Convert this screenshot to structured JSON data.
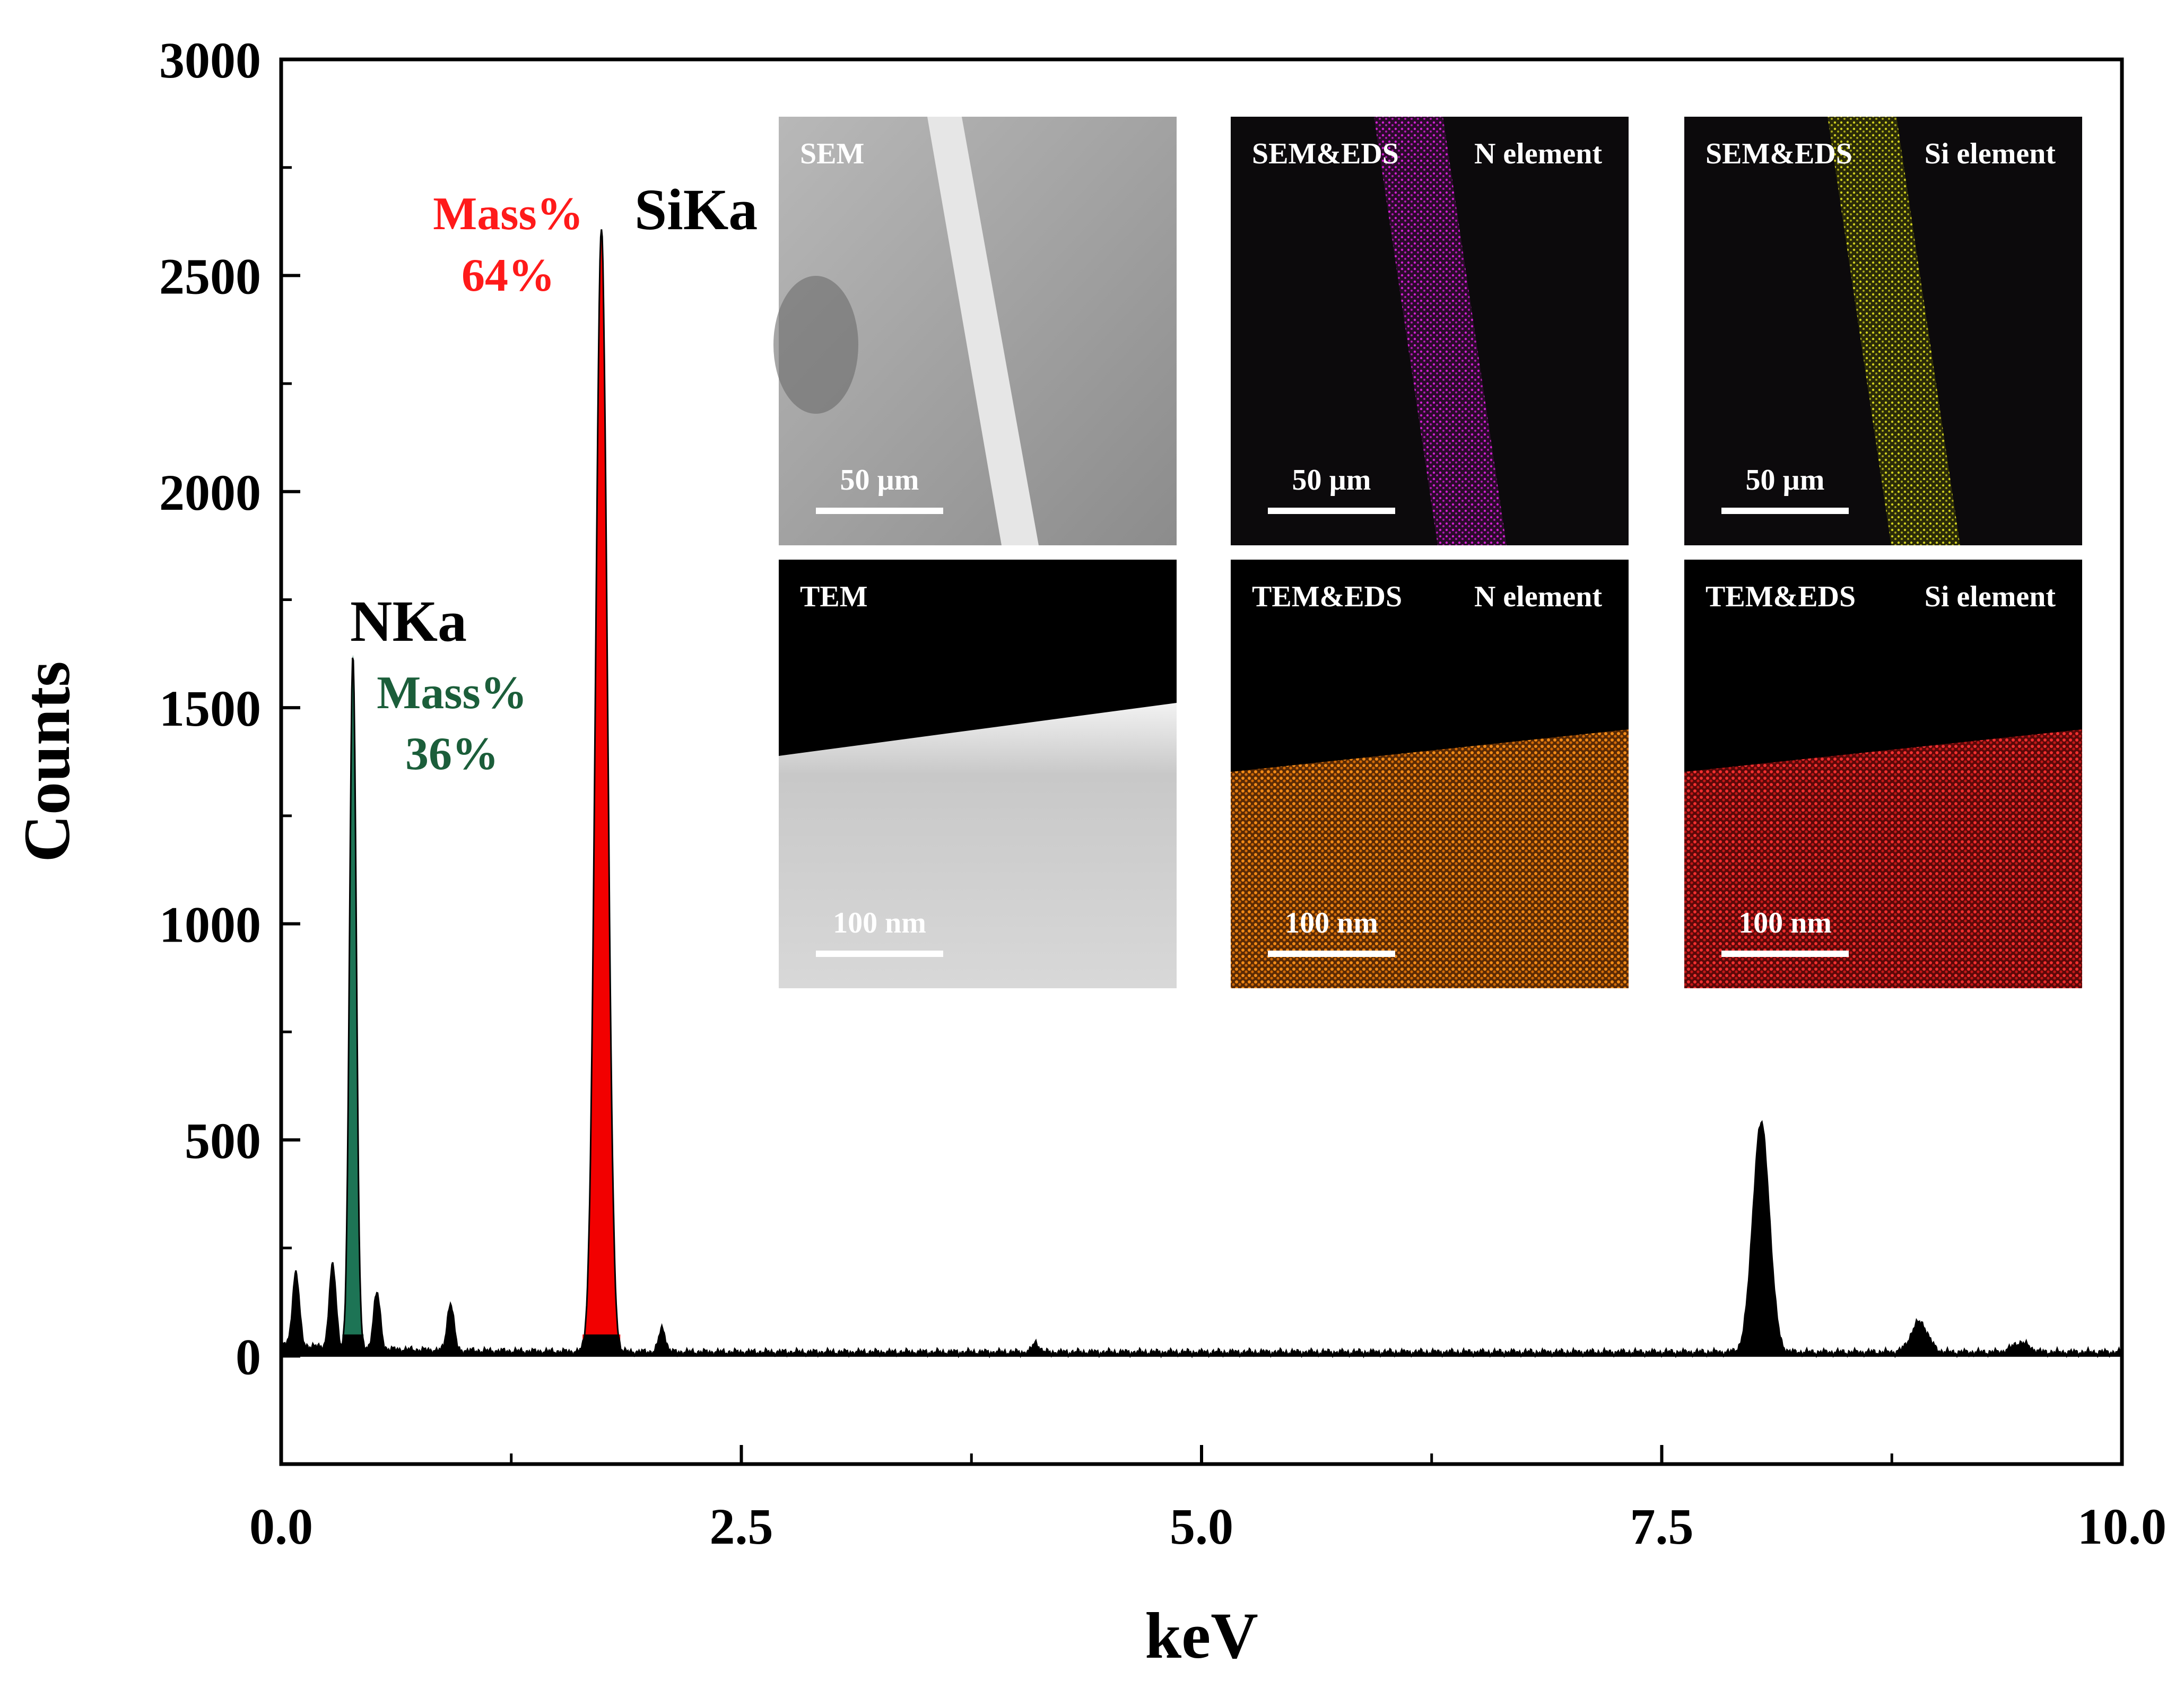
{
  "chart_data": {
    "type": "line",
    "title": "",
    "xlabel": "keV",
    "ylabel": "Counts",
    "xlim": [
      0,
      10
    ],
    "ylim": [
      -250,
      3000
    ],
    "x_ticks": [
      "0.0",
      "2.5",
      "5.0",
      "7.5",
      "10.0"
    ],
    "y_ticks": [
      "0",
      "500",
      "1000",
      "1500",
      "2000",
      "2500",
      "3000"
    ],
    "series": [
      {
        "name": "EDS spectrum",
        "color": "#000000",
        "peaks": [
          {
            "x": 0.08,
            "y": 170
          },
          {
            "x": 0.28,
            "y": 190
          },
          {
            "x": 0.39,
            "y": 1610
          },
          {
            "x": 0.52,
            "y": 130
          },
          {
            "x": 0.92,
            "y": 110
          },
          {
            "x": 1.74,
            "y": 2600
          },
          {
            "x": 2.07,
            "y": 55
          },
          {
            "x": 4.1,
            "y": 22
          },
          {
            "x": 8.04,
            "y": 530
          },
          {
            "x": 8.9,
            "y": 70
          },
          {
            "x": 9.45,
            "y": 22
          }
        ]
      }
    ],
    "peak_labels": [
      {
        "name": "NKa",
        "x": 0.39,
        "y": 1610,
        "mass_label": "Mass%",
        "mass_value": "36%",
        "color": "#1b5e3a",
        "fill": "#1f7a5a"
      },
      {
        "name": "SiKa",
        "x": 1.74,
        "y": 2600,
        "mass_label": "Mass%",
        "mass_value": "64%",
        "color": "#ff1a1a",
        "fill": "#ff0000"
      }
    ]
  },
  "insets": [
    {
      "label": "SEM",
      "element": "",
      "scale": "50 µm",
      "kind": "sem-gray"
    },
    {
      "label": "SEM&EDS",
      "element": "N element",
      "scale": "50 µm",
      "kind": "sem-magenta",
      "color": "#d020d0"
    },
    {
      "label": "SEM&EDS",
      "element": "Si element",
      "scale": "50 µm",
      "kind": "sem-yellow",
      "color": "#c8c820"
    },
    {
      "label": "TEM",
      "element": "",
      "scale": "100 nm",
      "kind": "tem-gray"
    },
    {
      "label": "TEM&EDS",
      "element": "N element",
      "scale": "100 nm",
      "kind": "tem-orange",
      "color": "#e07810"
    },
    {
      "label": "TEM&EDS",
      "element": "Si element",
      "scale": "100 nm",
      "kind": "tem-red",
      "color": "#e02020"
    }
  ]
}
